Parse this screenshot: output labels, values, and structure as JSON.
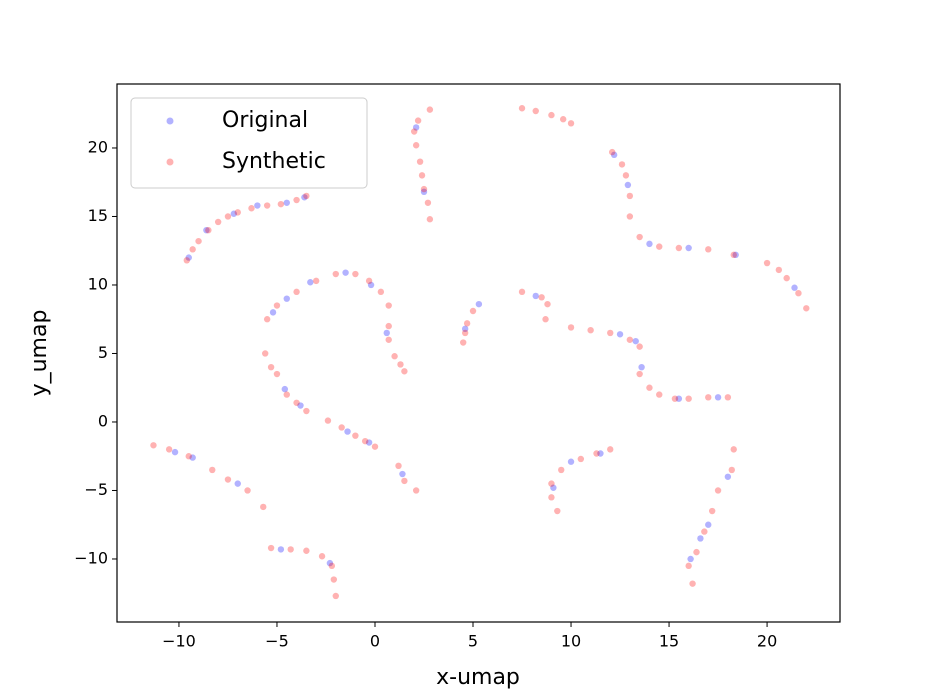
{
  "chart_data": {
    "type": "scatter",
    "x_label": "x-umap",
    "y_label": "y_umap",
    "xlim": [
      -13.16,
      23.72
    ],
    "ylim": [
      -14.6,
      24.67
    ],
    "xticks": [
      {
        "value": -10,
        "label": "−10"
      },
      {
        "value": -5,
        "label": "−5"
      },
      0,
      5,
      10,
      15,
      20
    ],
    "yticks": [
      {
        "value": -10,
        "label": "−10"
      },
      {
        "value": -5,
        "label": "−5"
      },
      0,
      5,
      10,
      15,
      20
    ],
    "legend": "upper left",
    "series": [
      {
        "name": "Original",
        "color": "#0000ff",
        "x": [
          -9.5,
          -8.6,
          -7.2,
          -6,
          -4.5,
          -3.6,
          2.1,
          2.5,
          12.2,
          12.9,
          14,
          16,
          18.4,
          21.4,
          -5.2,
          -4.5,
          -3.3,
          -1.5,
          -0.2,
          0.6,
          -4.6,
          -3.8,
          4.6,
          5.3,
          8.2,
          12.5,
          13.3,
          13.6,
          15.5,
          17.5,
          -10.2,
          -9.3,
          -7,
          -1.4,
          -0.3,
          1.4,
          9.1,
          10,
          11.5,
          18,
          17,
          16.6,
          16.1,
          -4.8,
          -2.3
        ],
        "y": [
          12,
          14,
          15.2,
          15.8,
          16,
          16.4,
          21.5,
          16.8,
          19.5,
          17.3,
          13,
          12.7,
          12.2,
          9.8,
          8,
          9,
          10.2,
          10.9,
          10,
          6.5,
          2.4,
          1.2,
          6.8,
          8.6,
          9.2,
          6.4,
          5.9,
          4,
          1.7,
          1.8,
          -2.2,
          -2.6,
          -4.5,
          -0.7,
          -1.5,
          -3.8,
          -4.8,
          -2.9,
          -2.3,
          -4,
          -7.5,
          -8.5,
          -10,
          -9.3,
          -10.3
        ]
      },
      {
        "name": "Synthetic",
        "color": "#ff0000",
        "x": [
          -9.6,
          -9.3,
          -9,
          -8.5,
          -8,
          -7.5,
          -7,
          -6.3,
          -5.5,
          -4.8,
          -4,
          -3.5,
          2.8,
          2.2,
          2,
          2.1,
          2.3,
          2.4,
          2.5,
          2.7,
          2.8,
          7.5,
          8.2,
          9,
          9.6,
          10,
          12.1,
          12.6,
          12.8,
          13,
          13,
          13.5,
          14.5,
          15.5,
          17,
          18.3,
          20,
          20.6,
          21,
          21.6,
          22,
          -5.5,
          -5,
          -4,
          -3,
          -2,
          -1,
          -0.3,
          0.3,
          0.7,
          0.7,
          0.7,
          -5.6,
          -5.3,
          -5,
          -4.5,
          -4,
          -3.5,
          1,
          1.3,
          1.5,
          4.5,
          4.6,
          4.7,
          5,
          7.5,
          8.5,
          8.8,
          8.7,
          10,
          11,
          12,
          13,
          13.5,
          13.5,
          14,
          14.5,
          15.3,
          16,
          17,
          18,
          -11.3,
          -10.5,
          -9.5,
          -8.3,
          -7.5,
          -6.5,
          -5.7,
          -2.4,
          -1.7,
          -1,
          -0.5,
          0,
          1.2,
          1.5,
          2.1,
          9.3,
          9,
          9,
          9.5,
          10.5,
          11.3,
          12,
          18.3,
          18.2,
          17.5,
          17.2,
          16.8,
          16.4,
          16,
          16.2,
          -5.3,
          -4.3,
          -3.5,
          -2.7,
          -2.2,
          -2.1,
          -2
        ],
        "y": [
          11.8,
          12.6,
          13.2,
          14,
          14.6,
          15,
          15.3,
          15.6,
          15.8,
          15.9,
          16.2,
          16.5,
          22.8,
          22,
          21.2,
          20.2,
          19,
          18,
          17,
          16,
          14.8,
          22.9,
          22.7,
          22.4,
          22.1,
          21.8,
          19.7,
          18.8,
          18,
          16.5,
          15,
          13.5,
          12.8,
          12.7,
          12.6,
          12.2,
          11.6,
          11.1,
          10.5,
          9.4,
          8.3,
          7.5,
          8.5,
          9.5,
          10.3,
          10.8,
          10.8,
          10.3,
          9.5,
          8.5,
          7,
          6,
          5,
          4,
          3.5,
          2,
          1.4,
          0.8,
          4.8,
          4.2,
          3.7,
          5.8,
          6.5,
          7.2,
          8.1,
          9.5,
          9.1,
          8.6,
          7.5,
          6.9,
          6.7,
          6.5,
          6,
          5.5,
          3.5,
          2.5,
          2,
          1.7,
          1.7,
          1.8,
          1.8,
          -1.7,
          -2,
          -2.5,
          -3.5,
          -4.2,
          -5,
          -6.2,
          0.1,
          -0.4,
          -1,
          -1.4,
          -1.8,
          -3.2,
          -4.3,
          -5,
          -6.5,
          -5.5,
          -4.5,
          -3.5,
          -2.7,
          -2.3,
          -2,
          -2,
          -3.5,
          -5,
          -6.5,
          -8,
          -9.5,
          -10.5,
          -11.8,
          -9.2,
          -9.3,
          -9.4,
          -9.8,
          -10.5,
          -11.5,
          -12.7
        ]
      }
    ]
  }
}
